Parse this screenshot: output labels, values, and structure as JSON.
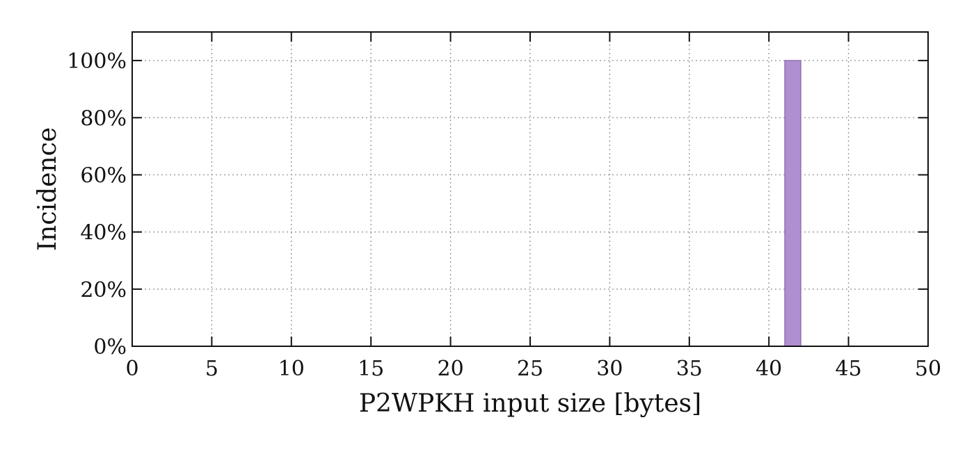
{
  "chart_data": {
    "type": "bar",
    "title": "",
    "xlabel": "P2WPKH input size [bytes]",
    "ylabel": "Incidence",
    "xlim": [
      0,
      50
    ],
    "ylim": [
      0,
      110
    ],
    "x_ticks": [
      0,
      5,
      10,
      15,
      20,
      25,
      30,
      35,
      40,
      45,
      50
    ],
    "x_tick_labels": [
      "0",
      "5",
      "10",
      "15",
      "20",
      "25",
      "30",
      "35",
      "40",
      "45",
      "50"
    ],
    "y_ticks": [
      0,
      20,
      40,
      60,
      80,
      100
    ],
    "y_tick_labels": [
      "0%",
      "20%",
      "40%",
      "60%",
      "80%",
      "100%"
    ],
    "grid": true,
    "bars": [
      {
        "x": 41,
        "width": 1,
        "value": 100
      }
    ],
    "bar_color": "#b08ed2",
    "bar_edge_color": "#8f6fb3",
    "axis_color": "#111111",
    "grid_color": "#9a9a9a"
  }
}
